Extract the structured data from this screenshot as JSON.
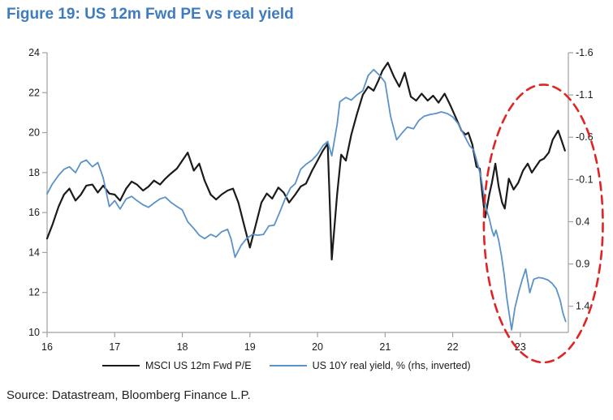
{
  "chart_data": {
    "type": "line",
    "title": "Figure 19: US 12m Fwd PE vs real yield",
    "source": "Source: Datastream, Bloomberg Finance L.P.",
    "grid": "off",
    "legend_position": "bottom-center",
    "x_axis": {
      "tick_labels": [
        "16",
        "17",
        "18",
        "19",
        "20",
        "21",
        "22",
        "23"
      ],
      "tick_values": [
        16,
        17,
        18,
        19,
        20,
        21,
        22,
        23
      ],
      "range": [
        16,
        23.71
      ]
    },
    "left_axis": {
      "tick_labels": [
        "24",
        "22",
        "20",
        "18",
        "16",
        "14",
        "12",
        "10"
      ],
      "tick_values": [
        24,
        22,
        20,
        18,
        16,
        14,
        12,
        10
      ],
      "range": [
        10,
        24
      ]
    },
    "right_axis": {
      "tick_labels": [
        "-1.6",
        "-1.1",
        "-0.6",
        "-0.1",
        "0.4",
        "0.9",
        "1.4"
      ],
      "tick_values": [
        -1.6,
        -1.1,
        -0.6,
        -0.1,
        0.4,
        0.9,
        1.4
      ],
      "range": [
        -1.6,
        1.71
      ],
      "inverted": true
    },
    "series": [
      {
        "name": "MSCI US 12m Fwd P/E",
        "axis": "left",
        "color": "#1b1b1b",
        "width": 2.2,
        "data": [
          [
            16.0,
            14.7
          ],
          [
            16.08,
            15.4
          ],
          [
            16.17,
            16.3
          ],
          [
            16.25,
            16.9
          ],
          [
            16.33,
            17.2
          ],
          [
            16.42,
            16.6
          ],
          [
            16.5,
            16.9
          ],
          [
            16.58,
            17.35
          ],
          [
            16.67,
            17.4
          ],
          [
            16.75,
            17.0
          ],
          [
            16.83,
            17.35
          ],
          [
            16.92,
            16.95
          ],
          [
            17.0,
            16.9
          ],
          [
            17.08,
            16.6
          ],
          [
            17.17,
            17.2
          ],
          [
            17.25,
            17.55
          ],
          [
            17.33,
            17.4
          ],
          [
            17.42,
            17.1
          ],
          [
            17.5,
            17.3
          ],
          [
            17.58,
            17.6
          ],
          [
            17.67,
            17.4
          ],
          [
            17.75,
            17.7
          ],
          [
            17.83,
            17.95
          ],
          [
            17.92,
            18.2
          ],
          [
            18.0,
            18.6
          ],
          [
            18.08,
            19.0
          ],
          [
            18.17,
            18.1
          ],
          [
            18.25,
            18.45
          ],
          [
            18.33,
            17.6
          ],
          [
            18.42,
            16.9
          ],
          [
            18.5,
            16.65
          ],
          [
            18.58,
            16.9
          ],
          [
            18.67,
            17.1
          ],
          [
            18.75,
            17.2
          ],
          [
            18.83,
            16.5
          ],
          [
            18.92,
            15.3
          ],
          [
            19.0,
            14.25
          ],
          [
            19.08,
            15.3
          ],
          [
            19.17,
            16.5
          ],
          [
            19.25,
            16.95
          ],
          [
            19.33,
            16.7
          ],
          [
            19.42,
            17.25
          ],
          [
            19.5,
            17.0
          ],
          [
            19.58,
            16.5
          ],
          [
            19.67,
            16.9
          ],
          [
            19.75,
            17.3
          ],
          [
            19.83,
            17.45
          ],
          [
            19.92,
            18.1
          ],
          [
            20.0,
            18.6
          ],
          [
            20.08,
            19.1
          ],
          [
            20.15,
            19.45
          ],
          [
            20.21,
            13.65
          ],
          [
            20.29,
            16.9
          ],
          [
            20.35,
            18.9
          ],
          [
            20.42,
            18.6
          ],
          [
            20.5,
            19.9
          ],
          [
            20.58,
            20.9
          ],
          [
            20.67,
            21.9
          ],
          [
            20.75,
            22.3
          ],
          [
            20.83,
            22.1
          ],
          [
            20.9,
            22.6
          ],
          [
            20.96,
            23.1
          ],
          [
            21.04,
            23.5
          ],
          [
            21.13,
            22.8
          ],
          [
            21.21,
            22.3
          ],
          [
            21.29,
            23.0
          ],
          [
            21.38,
            21.8
          ],
          [
            21.46,
            21.6
          ],
          [
            21.54,
            21.95
          ],
          [
            21.63,
            21.6
          ],
          [
            21.71,
            21.85
          ],
          [
            21.79,
            21.5
          ],
          [
            21.88,
            21.95
          ],
          [
            21.96,
            21.4
          ],
          [
            22.04,
            20.8
          ],
          [
            22.13,
            20.1
          ],
          [
            22.19,
            19.9
          ],
          [
            22.23,
            20.0
          ],
          [
            22.29,
            19.4
          ],
          [
            22.35,
            18.3
          ],
          [
            22.4,
            18.2
          ],
          [
            22.44,
            16.9
          ],
          [
            22.48,
            15.75
          ],
          [
            22.54,
            16.9
          ],
          [
            22.58,
            17.5
          ],
          [
            22.63,
            18.45
          ],
          [
            22.68,
            17.3
          ],
          [
            22.73,
            16.5
          ],
          [
            22.77,
            16.2
          ],
          [
            22.83,
            17.7
          ],
          [
            22.9,
            17.15
          ],
          [
            22.97,
            17.5
          ],
          [
            23.04,
            18.1
          ],
          [
            23.11,
            18.45
          ],
          [
            23.17,
            18.0
          ],
          [
            23.23,
            18.3
          ],
          [
            23.29,
            18.6
          ],
          [
            23.35,
            18.7
          ],
          [
            23.42,
            19.0
          ],
          [
            23.48,
            19.65
          ],
          [
            23.56,
            20.1
          ],
          [
            23.61,
            19.6
          ],
          [
            23.66,
            19.1
          ]
        ]
      },
      {
        "name": "US 10Y real yield, % (rhs, inverted)",
        "axis": "right",
        "color": "#5b92c9",
        "width": 1.8,
        "data": [
          [
            16.0,
            0.07
          ],
          [
            16.08,
            -0.05
          ],
          [
            16.17,
            -0.15
          ],
          [
            16.25,
            -0.22
          ],
          [
            16.33,
            -0.25
          ],
          [
            16.42,
            -0.18
          ],
          [
            16.5,
            -0.3
          ],
          [
            16.58,
            -0.33
          ],
          [
            16.67,
            -0.25
          ],
          [
            16.75,
            -0.3
          ],
          [
            16.83,
            -0.12
          ],
          [
            16.92,
            0.22
          ],
          [
            17.0,
            0.15
          ],
          [
            17.08,
            0.25
          ],
          [
            17.17,
            0.13
          ],
          [
            17.25,
            0.1
          ],
          [
            17.33,
            0.15
          ],
          [
            17.42,
            0.2
          ],
          [
            17.5,
            0.23
          ],
          [
            17.58,
            0.18
          ],
          [
            17.67,
            0.13
          ],
          [
            17.75,
            0.11
          ],
          [
            17.83,
            0.17
          ],
          [
            17.92,
            0.22
          ],
          [
            18.0,
            0.26
          ],
          [
            18.08,
            0.4
          ],
          [
            18.17,
            0.48
          ],
          [
            18.25,
            0.56
          ],
          [
            18.33,
            0.6
          ],
          [
            18.42,
            0.55
          ],
          [
            18.5,
            0.58
          ],
          [
            18.58,
            0.52
          ],
          [
            18.67,
            0.49
          ],
          [
            18.72,
            0.6
          ],
          [
            18.78,
            0.82
          ],
          [
            18.87,
            0.68
          ],
          [
            18.95,
            0.6
          ],
          [
            19.04,
            0.55
          ],
          [
            19.12,
            0.56
          ],
          [
            19.2,
            0.55
          ],
          [
            19.28,
            0.45
          ],
          [
            19.36,
            0.44
          ],
          [
            19.44,
            0.29
          ],
          [
            19.52,
            0.13
          ],
          [
            19.6,
            0.0
          ],
          [
            19.67,
            -0.05
          ],
          [
            19.75,
            -0.22
          ],
          [
            19.83,
            -0.28
          ],
          [
            19.92,
            -0.33
          ],
          [
            20.0,
            -0.4
          ],
          [
            20.08,
            -0.5
          ],
          [
            20.15,
            -0.55
          ],
          [
            20.21,
            -0.38
          ],
          [
            20.29,
            -0.75
          ],
          [
            20.33,
            -1.02
          ],
          [
            20.42,
            -1.07
          ],
          [
            20.5,
            -1.04
          ],
          [
            20.58,
            -1.1
          ],
          [
            20.67,
            -1.15
          ],
          [
            20.75,
            -1.33
          ],
          [
            20.83,
            -1.4
          ],
          [
            20.92,
            -1.33
          ],
          [
            21.0,
            -1.25
          ],
          [
            21.08,
            -0.85
          ],
          [
            21.17,
            -0.57
          ],
          [
            21.25,
            -0.65
          ],
          [
            21.33,
            -0.72
          ],
          [
            21.42,
            -0.7
          ],
          [
            21.5,
            -0.8
          ],
          [
            21.58,
            -0.85
          ],
          [
            21.67,
            -0.87
          ],
          [
            21.75,
            -0.88
          ],
          [
            21.83,
            -0.9
          ],
          [
            21.92,
            -0.88
          ],
          [
            22.0,
            -0.84
          ],
          [
            22.08,
            -0.76
          ],
          [
            22.17,
            -0.62
          ],
          [
            22.25,
            -0.5
          ],
          [
            22.31,
            -0.45
          ],
          [
            22.37,
            -0.28
          ],
          [
            22.42,
            -0.12
          ],
          [
            22.46,
            0.08
          ],
          [
            22.5,
            0.26
          ],
          [
            22.54,
            0.36
          ],
          [
            22.58,
            0.5
          ],
          [
            22.61,
            0.57
          ],
          [
            22.64,
            0.5
          ],
          [
            22.68,
            0.62
          ],
          [
            22.72,
            0.8
          ],
          [
            22.76,
            1.02
          ],
          [
            22.8,
            1.3
          ],
          [
            22.84,
            1.52
          ],
          [
            22.87,
            1.68
          ],
          [
            22.92,
            1.42
          ],
          [
            22.98,
            1.22
          ],
          [
            23.03,
            1.08
          ],
          [
            23.08,
            0.96
          ],
          [
            23.14,
            1.24
          ],
          [
            23.2,
            1.08
          ],
          [
            23.27,
            1.06
          ],
          [
            23.34,
            1.07
          ],
          [
            23.41,
            1.09
          ],
          [
            23.47,
            1.13
          ],
          [
            23.53,
            1.19
          ],
          [
            23.59,
            1.33
          ],
          [
            23.63,
            1.48
          ],
          [
            23.67,
            1.58
          ]
        ]
      }
    ],
    "annotation_ellipse": {
      "center_year": 23.34,
      "center_pe": 15.45,
      "radius_years": 0.88,
      "radius_pe": 6.95,
      "color": "#e02424",
      "style": "dashed"
    },
    "colors": {
      "title": "#3e7cbf",
      "axis_line": "#a0a0a0",
      "tick_text": "#1a1a1a",
      "source_text": "#242424"
    }
  }
}
